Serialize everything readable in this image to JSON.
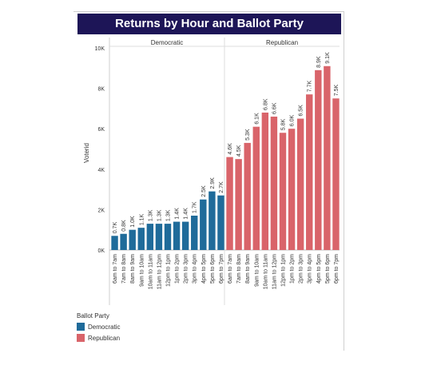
{
  "chart_data": {
    "type": "bar",
    "title": "Returns by Hour and Ballot Party",
    "ylabel": "Voterid",
    "ylim": [
      0,
      10000
    ],
    "yticks": [
      0,
      2000,
      4000,
      6000,
      8000,
      10000
    ],
    "ytick_labels": [
      "0K",
      "2K",
      "4K",
      "6K",
      "8K",
      "10K"
    ],
    "grid": false,
    "legend_title": "Ballot Party",
    "legend_position": "bottom-left",
    "panels": [
      {
        "name": "Democratic",
        "color": "#1f6b9a",
        "categories": [
          "6am to 7am",
          "7am to 8am",
          "8am to 9am",
          "9am to 10am",
          "10am to 11am",
          "11am to 12pm",
          "12pm to 1pm",
          "1pm to 2pm",
          "2pm to 3pm",
          "3pm to 4pm",
          "4pm to 5pm",
          "5pm to 6pm",
          "6pm to 7pm"
        ],
        "values": [
          700,
          800,
          1000,
          1100,
          1300,
          1300,
          1300,
          1400,
          1400,
          1700,
          2500,
          2900,
          2700
        ],
        "labels": [
          "0.7K",
          "0.8K",
          "1.0K",
          "1.1K",
          "1.3K",
          "1.3K",
          "1.3K",
          "1.4K",
          "1.4K",
          "1.7K",
          "2.5K",
          "2.9K",
          "2.7K"
        ]
      },
      {
        "name": "Republican",
        "color": "#d9646a",
        "categories": [
          "6am to 7am",
          "7am to 8am",
          "8am to 9am",
          "9am to 10am",
          "10am to 11am",
          "11am to 12pm",
          "12pm to 1pm",
          "1pm to 2pm",
          "2pm to 3pm",
          "3pm to 4pm",
          "4pm to 5pm",
          "5pm to 6pm",
          "6pm to 7pm"
        ],
        "values": [
          4600,
          4500,
          5300,
          6100,
          6800,
          6600,
          5800,
          6000,
          6500,
          7700,
          8900,
          9100,
          7500
        ],
        "labels": [
          "4.6K",
          "4.5K",
          "5.3K",
          "6.1K",
          "6.8K",
          "6.6K",
          "5.8K",
          "6.0K",
          "6.5K",
          "7.7K",
          "8.9K",
          "9.1K",
          "7.5K"
        ]
      }
    ]
  }
}
